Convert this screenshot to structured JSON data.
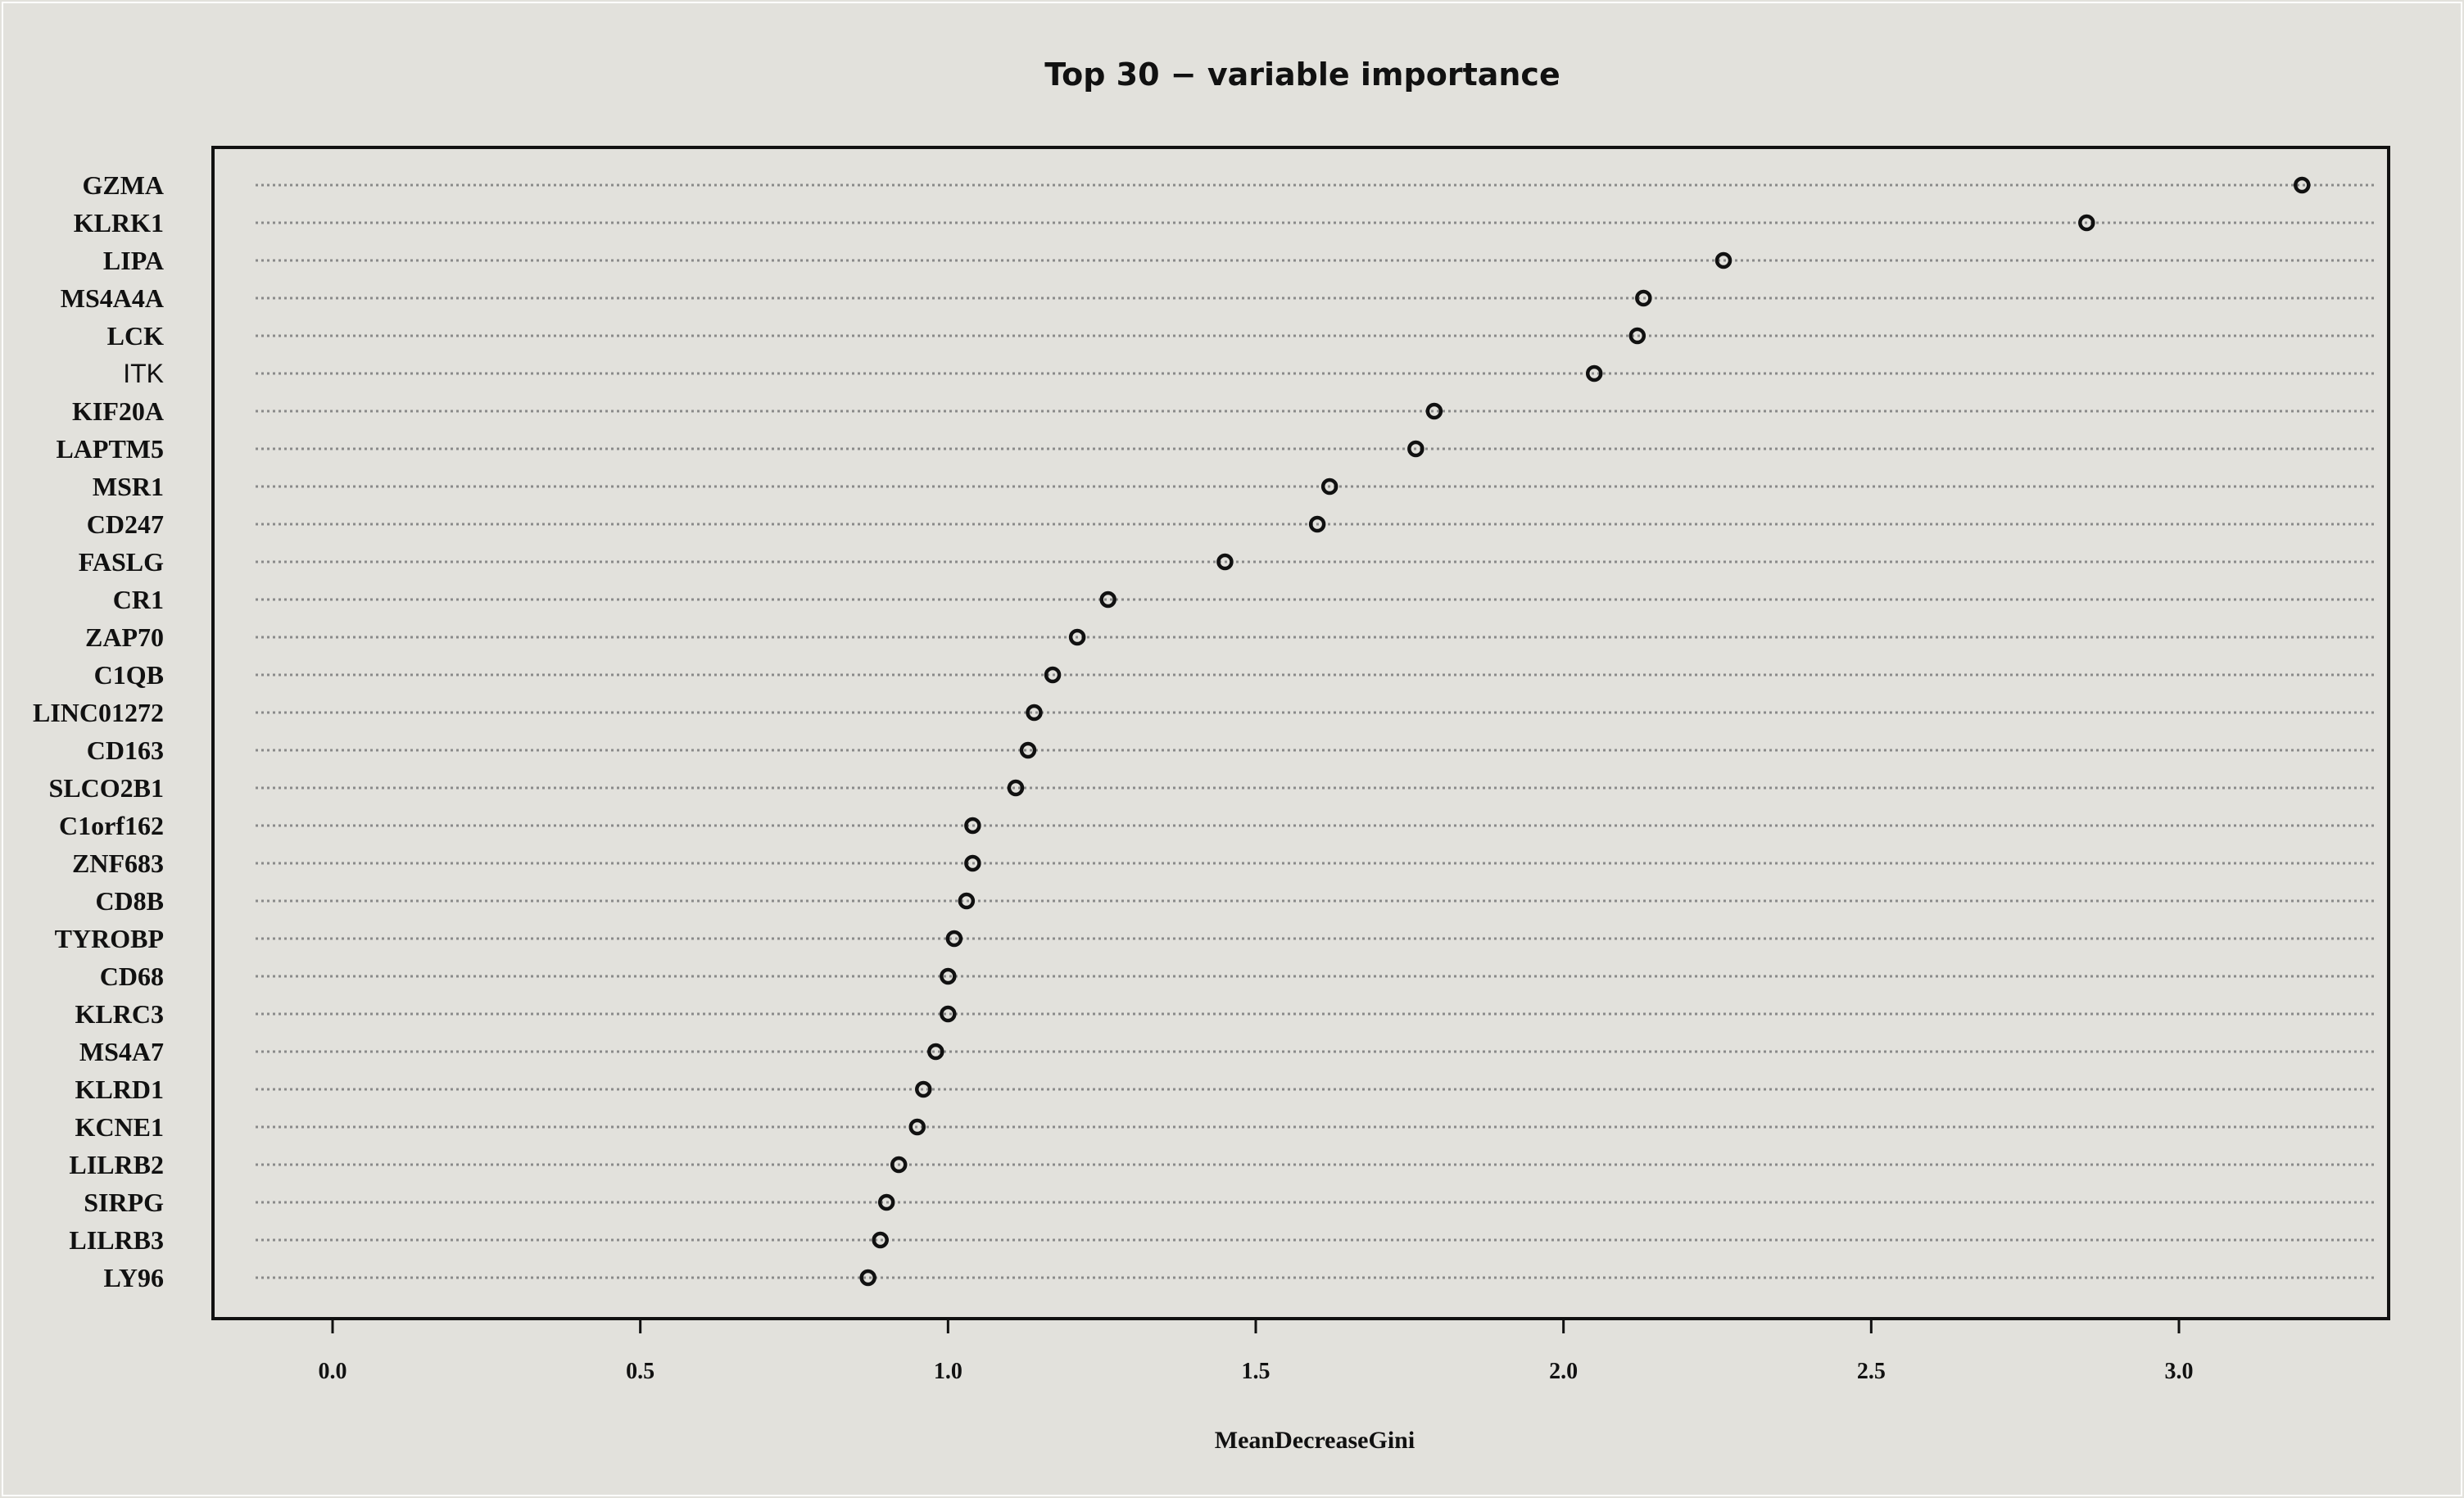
{
  "chart_data": {
    "type": "scatter",
    "title": "Top 30 − variable importance",
    "xlabel": "MeanDecreaseGini",
    "ylabel": "",
    "xlim": [
      -0.15,
      3.33
    ],
    "xticks": [
      "0.0",
      "0.5",
      "1.0",
      "1.5",
      "2.0",
      "2.5",
      "3.0"
    ],
    "xtick_values": [
      0.0,
      0.5,
      1.0,
      1.5,
      2.0,
      2.5,
      3.0
    ],
    "grid": "dotted horizontal guide lines",
    "marker": "open circle",
    "variables": [
      {
        "name": "GZMA",
        "value": 3.2,
        "font": "serif"
      },
      {
        "name": "KLRK1",
        "value": 2.85,
        "font": "serif"
      },
      {
        "name": "LIPA",
        "value": 2.26,
        "font": "serif"
      },
      {
        "name": "MS4A4A",
        "value": 2.13,
        "font": "serif"
      },
      {
        "name": "LCK",
        "value": 2.12,
        "font": "serif"
      },
      {
        "name": "ITK",
        "value": 2.05,
        "font": "sans"
      },
      {
        "name": "KIF20A",
        "value": 1.79,
        "font": "serif"
      },
      {
        "name": "LAPTM5",
        "value": 1.76,
        "font": "serif"
      },
      {
        "name": "MSR1",
        "value": 1.62,
        "font": "serif"
      },
      {
        "name": "CD247",
        "value": 1.6,
        "font": "serif"
      },
      {
        "name": "FASLG",
        "value": 1.45,
        "font": "serif"
      },
      {
        "name": "CR1",
        "value": 1.26,
        "font": "serif"
      },
      {
        "name": "ZAP70",
        "value": 1.21,
        "font": "serif"
      },
      {
        "name": "C1QB",
        "value": 1.17,
        "font": "serif"
      },
      {
        "name": "LINC01272",
        "value": 1.14,
        "font": "serif"
      },
      {
        "name": "CD163",
        "value": 1.13,
        "font": "serif"
      },
      {
        "name": "SLCO2B1",
        "value": 1.11,
        "font": "serif"
      },
      {
        "name": "C1orf162",
        "value": 1.04,
        "font": "serif"
      },
      {
        "name": "ZNF683",
        "value": 1.04,
        "font": "serif"
      },
      {
        "name": "CD8B",
        "value": 1.03,
        "font": "serif"
      },
      {
        "name": "TYROBP",
        "value": 1.01,
        "font": "serif"
      },
      {
        "name": "CD68",
        "value": 1.0,
        "font": "serif"
      },
      {
        "name": "KLRC3",
        "value": 1.0,
        "font": "serif"
      },
      {
        "name": "MS4A7",
        "value": 0.98,
        "font": "serif"
      },
      {
        "name": "KLRD1",
        "value": 0.96,
        "font": "serif"
      },
      {
        "name": "KCNE1",
        "value": 0.95,
        "font": "serif"
      },
      {
        "name": "LILRB2",
        "value": 0.92,
        "font": "serif"
      },
      {
        "name": "SIRPG",
        "value": 0.9,
        "font": "serif"
      },
      {
        "name": "LILRB3",
        "value": 0.89,
        "font": "serif"
      },
      {
        "name": "LY96",
        "value": 0.87,
        "font": "serif"
      }
    ]
  },
  "colors": {
    "background": "#e2e1dc",
    "axis": "#111111",
    "gridline": "#8a8a8a",
    "marker_stroke": "#111111"
  }
}
